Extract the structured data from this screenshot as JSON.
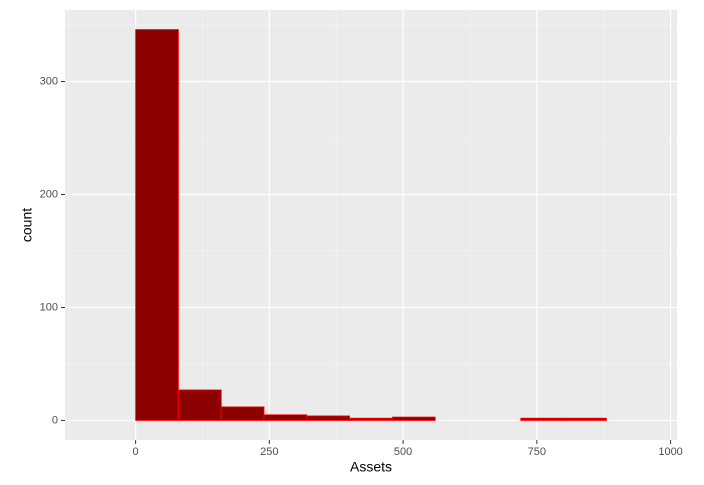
{
  "chart_data": {
    "type": "histogram",
    "x_label": "Assets",
    "y_label": "count",
    "bins": [
      -80,
      0,
      80,
      160,
      240,
      320,
      400,
      480,
      560,
      640,
      720,
      800,
      880,
      960
    ],
    "values": [
      0,
      346,
      27,
      12,
      5,
      4,
      2,
      3,
      0,
      0,
      2,
      2,
      0
    ],
    "fill": "#8b0000",
    "edge_color": "#ff0000",
    "xlim": [
      -132,
      1012
    ],
    "xticks": [
      0,
      250,
      500,
      750,
      1000
    ],
    "x_minor_ticks": [
      -125,
      125,
      375,
      625,
      875
    ],
    "ylim": [
      -17.3,
      363.3
    ],
    "yticks": [
      0,
      100,
      200,
      300
    ],
    "y_minor_ticks": [
      50,
      150,
      250,
      350
    ],
    "grid": true
  }
}
